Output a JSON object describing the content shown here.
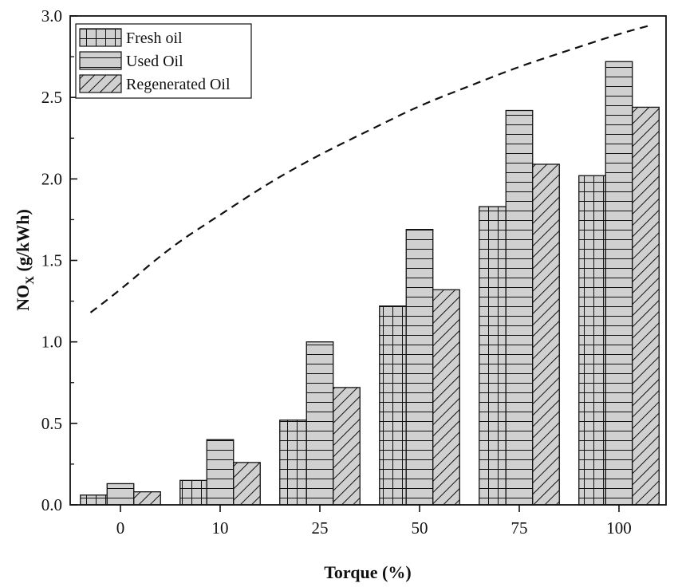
{
  "chart_data": {
    "type": "bar",
    "title": "",
    "xlabel": "Torque (%)",
    "ylabel_main": "NO",
    "ylabel_sub": "X",
    "ylabel_unit": " (g/kWh)",
    "categories": [
      "0",
      "10",
      "25",
      "50",
      "75",
      "100"
    ],
    "ylim": [
      0,
      3.0
    ],
    "yticks": [
      "0.0",
      "0.5",
      "1.0",
      "1.5",
      "2.0",
      "2.5",
      "3.0"
    ],
    "series": [
      {
        "name": "Fresh oil",
        "pattern": "grid",
        "values": [
          0.06,
          0.15,
          0.52,
          1.22,
          1.83,
          2.02
        ]
      },
      {
        "name": "Used Oil",
        "pattern": "horizontal",
        "values": [
          0.13,
          0.4,
          1.0,
          1.69,
          2.42,
          2.72
        ]
      },
      {
        "name": "Regenerated Oil",
        "pattern": "diagonal",
        "values": [
          0.08,
          0.26,
          0.72,
          1.32,
          2.09,
          2.44
        ]
      }
    ],
    "trend_line": {
      "style": "dashed",
      "x": [
        -0.3,
        0,
        0.5,
        1,
        1.5,
        2,
        2.5,
        3,
        3.5,
        4,
        4.5,
        5,
        5.3
      ],
      "y": [
        1.18,
        1.32,
        1.58,
        1.78,
        1.98,
        2.15,
        2.3,
        2.45,
        2.57,
        2.69,
        2.79,
        2.89,
        2.94
      ]
    },
    "legend_position": "top-left",
    "grid": false,
    "colors": {
      "bar_fill": "#d0d0d0",
      "stroke": "#111111"
    }
  }
}
